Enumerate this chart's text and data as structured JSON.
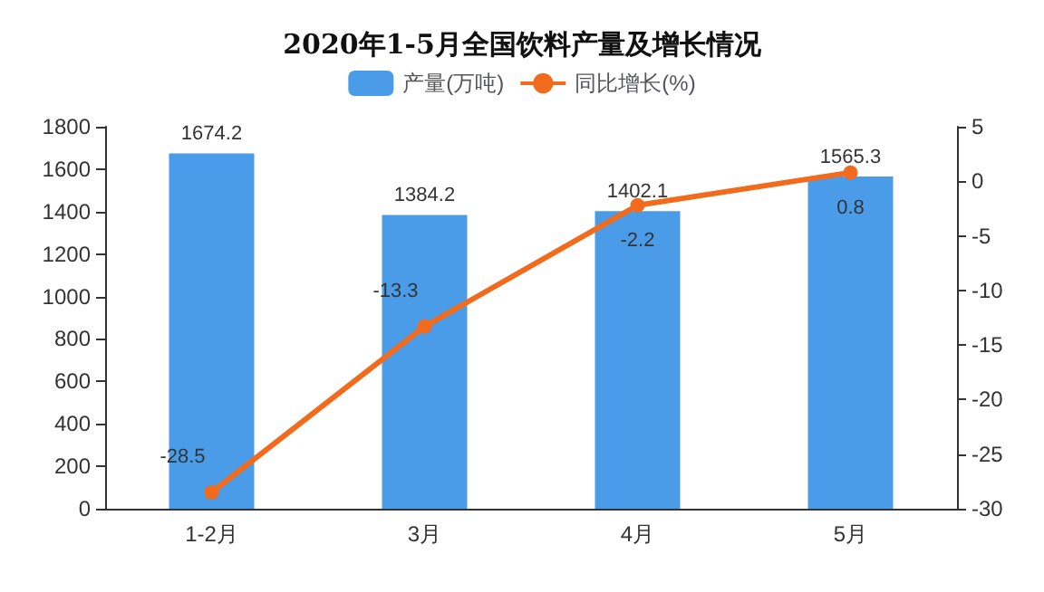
{
  "chart_data": {
    "type": "bar",
    "title": "2020年1-5月全国饮料产量及增长情况",
    "categories": [
      "1-2月",
      "3月",
      "4月",
      "5月"
    ],
    "series": [
      {
        "name": "产量(万吨)",
        "color": "#4b9ce8",
        "values": [
          1674.2,
          1384.2,
          1402.1,
          1565.3
        ]
      },
      {
        "name": "同比增长(%)",
        "type": "line",
        "axis": "y2",
        "color": "#f26b1d",
        "values": [
          -28.5,
          -13.3,
          -2.2,
          0.8
        ]
      }
    ],
    "ylim": [
      0,
      1800
    ],
    "yticks": [
      0,
      200,
      400,
      600,
      800,
      1000,
      1200,
      1400,
      1600,
      1800
    ],
    "y2lim": [
      -30,
      5
    ],
    "y2ticks": [
      -30,
      -25,
      -20,
      -15,
      -10,
      -5,
      0,
      5
    ],
    "data_labels": true,
    "legend": "top",
    "grid": false,
    "marker": "circle",
    "line_style": "solid"
  }
}
